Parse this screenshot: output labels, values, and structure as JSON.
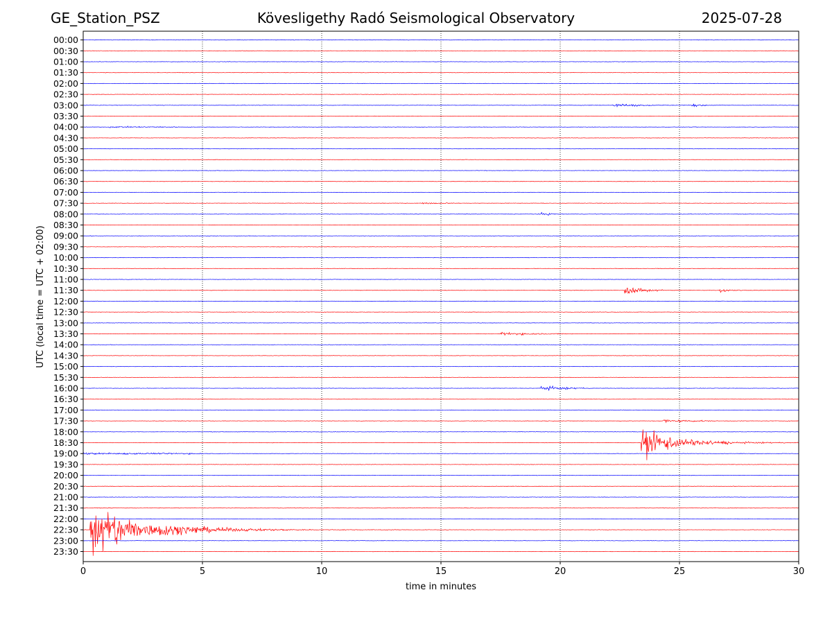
{
  "header": {
    "station": "GE_Station_PSZ",
    "title": "Kövesligethy Radó Seismological Observatory",
    "date": "2025-07-28"
  },
  "chart_data": {
    "type": "line",
    "subtype": "helicorder",
    "xlabel": "time in minutes",
    "ylabel": "UTC (local time = UTC + 02:00)",
    "xlim": [
      0,
      30
    ],
    "x_ticks": [
      0,
      5,
      10,
      15,
      20,
      25,
      30
    ],
    "vertical_gridlines_at": [
      5,
      10,
      15,
      20,
      25
    ],
    "row_labels": [
      "00:00",
      "00:30",
      "01:00",
      "01:30",
      "02:00",
      "02:30",
      "03:00",
      "03:30",
      "04:00",
      "04:30",
      "05:00",
      "05:30",
      "06:00",
      "06:30",
      "07:00",
      "07:30",
      "08:00",
      "08:30",
      "09:00",
      "09:30",
      "10:00",
      "10:30",
      "11:00",
      "11:30",
      "12:00",
      "12:30",
      "13:00",
      "13:30",
      "14:00",
      "14:30",
      "15:00",
      "15:30",
      "16:00",
      "16:30",
      "17:00",
      "17:30",
      "18:00",
      "18:30",
      "19:00",
      "19:30",
      "20:00",
      "20:30",
      "21:00",
      "21:30",
      "22:00",
      "22:30",
      "23:00",
      "23:30"
    ],
    "colors": {
      "even_rows": "#0000ff",
      "odd_rows": "#ff0000"
    },
    "events": [
      {
        "row": "03:00",
        "start_min": 22.2,
        "end_min": 25.8,
        "peak_amp": 0.35,
        "decay": 3.5
      },
      {
        "row": "03:00",
        "start_min": 25.5,
        "end_min": 26.2,
        "peak_amp": 0.3,
        "decay": 1.0
      },
      {
        "row": "04:00",
        "start_min": 1.0,
        "end_min": 4.0,
        "peak_amp": 0.12,
        "decay": 1.0
      },
      {
        "row": "07:30",
        "start_min": 14.2,
        "end_min": 15.4,
        "peak_amp": 0.15,
        "decay": 1.2
      },
      {
        "row": "08:00",
        "start_min": 19.1,
        "end_min": 19.8,
        "peak_amp": 0.25,
        "decay": 1.0
      },
      {
        "row": "11:30",
        "start_min": 22.7,
        "end_min": 24.3,
        "peak_amp": 0.85,
        "decay": 2.0
      },
      {
        "row": "11:30",
        "start_min": 26.7,
        "end_min": 27.6,
        "peak_amp": 0.35,
        "decay": 1.5
      },
      {
        "row": "13:30",
        "start_min": 17.5,
        "end_min": 20.5,
        "peak_amp": 0.35,
        "decay": 2.5
      },
      {
        "row": "16:00",
        "start_min": 19.2,
        "end_min": 21.0,
        "peak_amp": 0.5,
        "decay": 2.0
      },
      {
        "row": "17:30",
        "start_min": 24.3,
        "end_min": 26.5,
        "peak_amp": 0.35,
        "decay": 2.0
      },
      {
        "row": "18:30",
        "start_min": 23.4,
        "end_min": 30.0,
        "peak_amp": 2.8,
        "decay": 4.5
      },
      {
        "row": "19:00",
        "start_min": 0.0,
        "end_min": 5.0,
        "peak_amp": 0.15,
        "decay": 0.5
      },
      {
        "row": "22:30",
        "start_min": 0.3,
        "end_min": 16.0,
        "peak_amp": 5.5,
        "decay": 7.5
      }
    ]
  }
}
